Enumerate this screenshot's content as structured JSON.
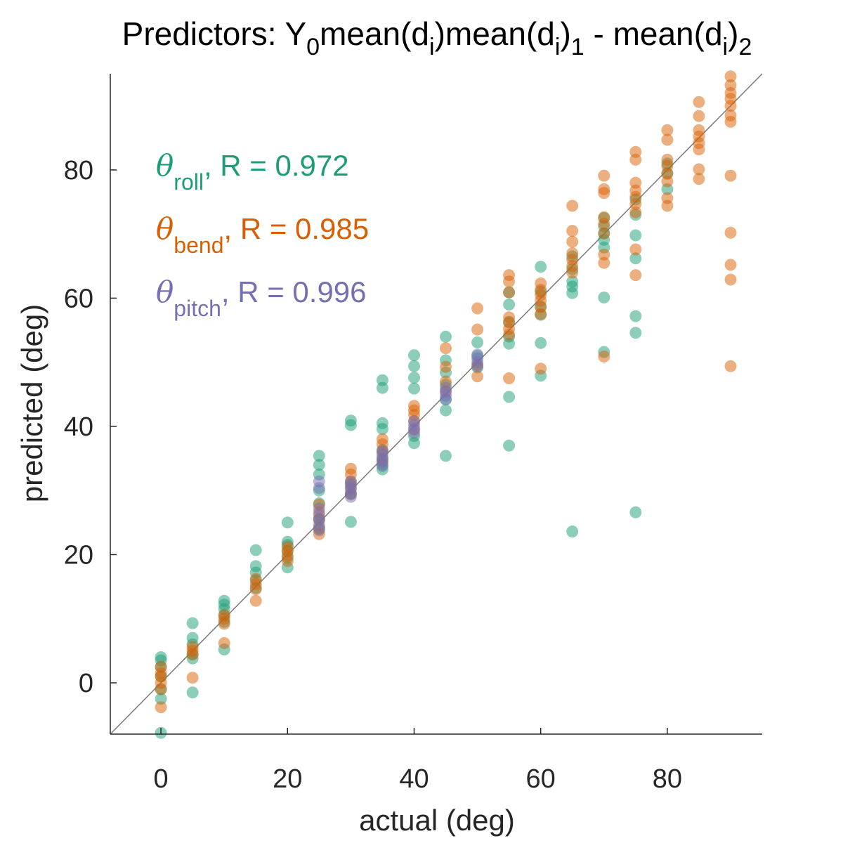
{
  "chart_data": {
    "type": "scatter",
    "title": {
      "parts": [
        {
          "text": "Predictors: Y"
        },
        {
          "text": "0",
          "sub": true
        },
        {
          "text": "mean(d"
        },
        {
          "text": "i",
          "sub": true
        },
        {
          "text": ")mean(d"
        },
        {
          "text": "i",
          "sub": true
        },
        {
          "text": ")"
        },
        {
          "text": "1",
          "sub": true
        },
        {
          "text": " - mean(d"
        },
        {
          "text": "i",
          "sub": true
        },
        {
          "text": ")"
        },
        {
          "text": "2",
          "sub": true
        }
      ]
    },
    "xlabel": "actual (deg)",
    "ylabel": "predicted (deg)",
    "xlim": [
      -8,
      95
    ],
    "ylim": [
      -8,
      95
    ],
    "xticks": [
      0,
      20,
      40,
      60,
      80
    ],
    "yticks": [
      0,
      20,
      40,
      60,
      80
    ],
    "grid": false,
    "legend_placement": "top-left",
    "reference_line": "y = x",
    "series": [
      {
        "name": "roll",
        "symbol": "θ",
        "stat": ", R = 0.972",
        "color": "#1b9e77",
        "points": [
          [
            0,
            -7.8
          ],
          [
            0,
            -2.5
          ],
          [
            0,
            -1
          ],
          [
            0,
            1
          ],
          [
            0,
            2.5
          ],
          [
            0,
            3.5
          ],
          [
            0,
            4
          ],
          [
            5,
            -1.5
          ],
          [
            5,
            3.8
          ],
          [
            5,
            4.5
          ],
          [
            5,
            6
          ],
          [
            5,
            7
          ],
          [
            5,
            9.3
          ],
          [
            10,
            5.2
          ],
          [
            10,
            9.5
          ],
          [
            10,
            10.5
          ],
          [
            10,
            11.5
          ],
          [
            10,
            12.2
          ],
          [
            10,
            12.8
          ],
          [
            15,
            14.8
          ],
          [
            15,
            16
          ],
          [
            15,
            17.2
          ],
          [
            15,
            18.2
          ],
          [
            15,
            20.7
          ],
          [
            20,
            18
          ],
          [
            20,
            19.5
          ],
          [
            20,
            20.5
          ],
          [
            20,
            21.5
          ],
          [
            20,
            22
          ],
          [
            20,
            25
          ],
          [
            25,
            24
          ],
          [
            25,
            25.5
          ],
          [
            25,
            28
          ],
          [
            25,
            30
          ],
          [
            25,
            32.5
          ],
          [
            25,
            34
          ],
          [
            25,
            35.4
          ],
          [
            30,
            25.1
          ],
          [
            30,
            29.5
          ],
          [
            30,
            31
          ],
          [
            30,
            40.2
          ],
          [
            30,
            40.9
          ],
          [
            35,
            33.3
          ],
          [
            35,
            34
          ],
          [
            35,
            35
          ],
          [
            35,
            36.3
          ],
          [
            35,
            39.6
          ],
          [
            35,
            40.5
          ],
          [
            35,
            46
          ],
          [
            35,
            47.2
          ],
          [
            40,
            37.4
          ],
          [
            40,
            38.5
          ],
          [
            40,
            45.9
          ],
          [
            40,
            47.6
          ],
          [
            40,
            49.4
          ],
          [
            40,
            51.1
          ],
          [
            45,
            35.4
          ],
          [
            45,
            42.5
          ],
          [
            45,
            44.2
          ],
          [
            45,
            46.5
          ],
          [
            45,
            48.4
          ],
          [
            45,
            50.3
          ],
          [
            45,
            54
          ],
          [
            50,
            49.2
          ],
          [
            50,
            51
          ],
          [
            50,
            53.1
          ],
          [
            55,
            37
          ],
          [
            55,
            44.6
          ],
          [
            55,
            52.9
          ],
          [
            55,
            54
          ],
          [
            55,
            56.3
          ],
          [
            55,
            59
          ],
          [
            55,
            60.9
          ],
          [
            60,
            47.9
          ],
          [
            60,
            53
          ],
          [
            60,
            57.4
          ],
          [
            60,
            58.7
          ],
          [
            60,
            61
          ],
          [
            60,
            64.9
          ],
          [
            65,
            23.6
          ],
          [
            65,
            60.8
          ],
          [
            65,
            61.8
          ],
          [
            65,
            62.6
          ],
          [
            65,
            64.5
          ],
          [
            65,
            66.5
          ],
          [
            70,
            51.6
          ],
          [
            70,
            60.1
          ],
          [
            70,
            67.9
          ],
          [
            70,
            69.1
          ],
          [
            70,
            70.1
          ],
          [
            70,
            71.2
          ],
          [
            70,
            72.5
          ],
          [
            75,
            26.6
          ],
          [
            75,
            54.6
          ],
          [
            75,
            57.2
          ],
          [
            75,
            66.2
          ],
          [
            75,
            69.8
          ],
          [
            75,
            73
          ],
          [
            75,
            75.4
          ],
          [
            80,
            77
          ],
          [
            80,
            79.5
          ],
          [
            80,
            81
          ]
        ]
      },
      {
        "name": "bend",
        "symbol": "θ",
        "stat": ", R = 0.985",
        "color": "#d95f02",
        "points": [
          [
            0,
            -3.8
          ],
          [
            0,
            -1
          ],
          [
            0,
            0
          ],
          [
            0,
            1
          ],
          [
            0,
            1.5
          ],
          [
            0,
            2.5
          ],
          [
            5,
            0.8
          ],
          [
            5,
            4.4
          ],
          [
            5,
            5
          ],
          [
            5,
            5.6
          ],
          [
            10,
            6.2
          ],
          [
            10,
            9.2
          ],
          [
            10,
            10
          ],
          [
            10,
            10.6
          ],
          [
            15,
            12.8
          ],
          [
            15,
            14.6
          ],
          [
            15,
            15.4
          ],
          [
            15,
            16.2
          ],
          [
            20,
            19
          ],
          [
            20,
            19.8
          ],
          [
            20,
            20.6
          ],
          [
            20,
            21.2
          ],
          [
            25,
            23.2
          ],
          [
            25,
            24.2
          ],
          [
            25,
            25.6
          ],
          [
            25,
            26.6
          ],
          [
            25,
            27.8
          ],
          [
            30,
            29.4
          ],
          [
            30,
            30.4
          ],
          [
            30,
            31.4
          ],
          [
            30,
            32.5
          ],
          [
            30,
            33.4
          ],
          [
            35,
            34.6
          ],
          [
            35,
            36
          ],
          [
            35,
            37.2
          ],
          [
            35,
            38
          ],
          [
            40,
            39.5
          ],
          [
            40,
            40.8
          ],
          [
            40,
            41.8
          ],
          [
            40,
            42.5
          ],
          [
            40,
            43.2
          ],
          [
            45,
            45.5
          ],
          [
            45,
            47
          ],
          [
            45,
            49.3
          ],
          [
            45,
            52.2
          ],
          [
            50,
            47.8
          ],
          [
            50,
            49.6
          ],
          [
            50,
            55.1
          ],
          [
            50,
            58.4
          ],
          [
            55,
            47.5
          ],
          [
            55,
            54.3
          ],
          [
            55,
            55.2
          ],
          [
            55,
            56.2
          ],
          [
            55,
            57
          ],
          [
            55,
            60.9
          ],
          [
            55,
            62.6
          ],
          [
            55,
            63.6
          ],
          [
            60,
            49
          ],
          [
            60,
            57.5
          ],
          [
            60,
            58.6
          ],
          [
            60,
            59.6
          ],
          [
            60,
            60.5
          ],
          [
            60,
            61.3
          ],
          [
            60,
            62.3
          ],
          [
            65,
            64
          ],
          [
            65,
            65
          ],
          [
            65,
            66
          ],
          [
            65,
            67
          ],
          [
            65,
            68.8
          ],
          [
            65,
            70.5
          ],
          [
            65,
            74.4
          ],
          [
            70,
            50.9
          ],
          [
            70,
            65.5
          ],
          [
            70,
            66.8
          ],
          [
            70,
            70.1
          ],
          [
            70,
            71.6
          ],
          [
            70,
            72.6
          ],
          [
            70,
            76.4
          ],
          [
            70,
            77
          ],
          [
            70,
            79.1
          ],
          [
            75,
            63.6
          ],
          [
            75,
            67.6
          ],
          [
            75,
            73.4
          ],
          [
            75,
            74.7
          ],
          [
            75,
            75.8
          ],
          [
            75,
            76.8
          ],
          [
            75,
            78
          ],
          [
            75,
            81.6
          ],
          [
            75,
            82.8
          ],
          [
            80,
            74.4
          ],
          [
            80,
            75.6
          ],
          [
            80,
            78.2
          ],
          [
            80,
            79.4
          ],
          [
            80,
            80.6
          ],
          [
            80,
            81.6
          ],
          [
            80,
            84.7
          ],
          [
            80,
            86.2
          ],
          [
            85,
            78.6
          ],
          [
            85,
            80.1
          ],
          [
            85,
            83.2
          ],
          [
            85,
            84.2
          ],
          [
            85,
            85.2
          ],
          [
            85,
            86.2
          ],
          [
            85,
            88.4
          ],
          [
            85,
            90.6
          ],
          [
            90,
            49.4
          ],
          [
            90,
            62.9
          ],
          [
            90,
            65.2
          ],
          [
            90,
            70.2
          ],
          [
            90,
            79.1
          ],
          [
            90,
            87.5
          ],
          [
            90,
            88.5
          ],
          [
            90,
            90
          ],
          [
            90,
            91.1
          ],
          [
            90,
            92
          ],
          [
            90,
            93.2
          ],
          [
            90,
            94.6
          ]
        ]
      },
      {
        "name": "pitch",
        "symbol": "θ",
        "stat": ", R = 0.996",
        "color": "#7570b3",
        "points": [
          [
            25,
            23.8
          ],
          [
            25,
            24.6
          ],
          [
            25,
            25.4
          ],
          [
            25,
            26.2
          ],
          [
            25,
            27.2
          ],
          [
            25,
            30.4
          ],
          [
            25,
            31.4
          ],
          [
            30,
            29
          ],
          [
            30,
            29.6
          ],
          [
            30,
            30.2
          ],
          [
            30,
            30.8
          ],
          [
            30,
            31.4
          ],
          [
            35,
            33.8
          ],
          [
            35,
            34.4
          ],
          [
            35,
            35
          ],
          [
            35,
            35.6
          ],
          [
            35,
            36.2
          ],
          [
            40,
            39
          ],
          [
            40,
            39.6
          ],
          [
            40,
            40.2
          ],
          [
            40,
            40.8
          ],
          [
            45,
            44.2
          ],
          [
            45,
            44.8
          ],
          [
            45,
            45.4
          ],
          [
            45,
            46
          ],
          [
            50,
            49.4
          ],
          [
            50,
            50
          ],
          [
            50,
            50.6
          ],
          [
            50,
            51.2
          ]
        ]
      }
    ]
  }
}
